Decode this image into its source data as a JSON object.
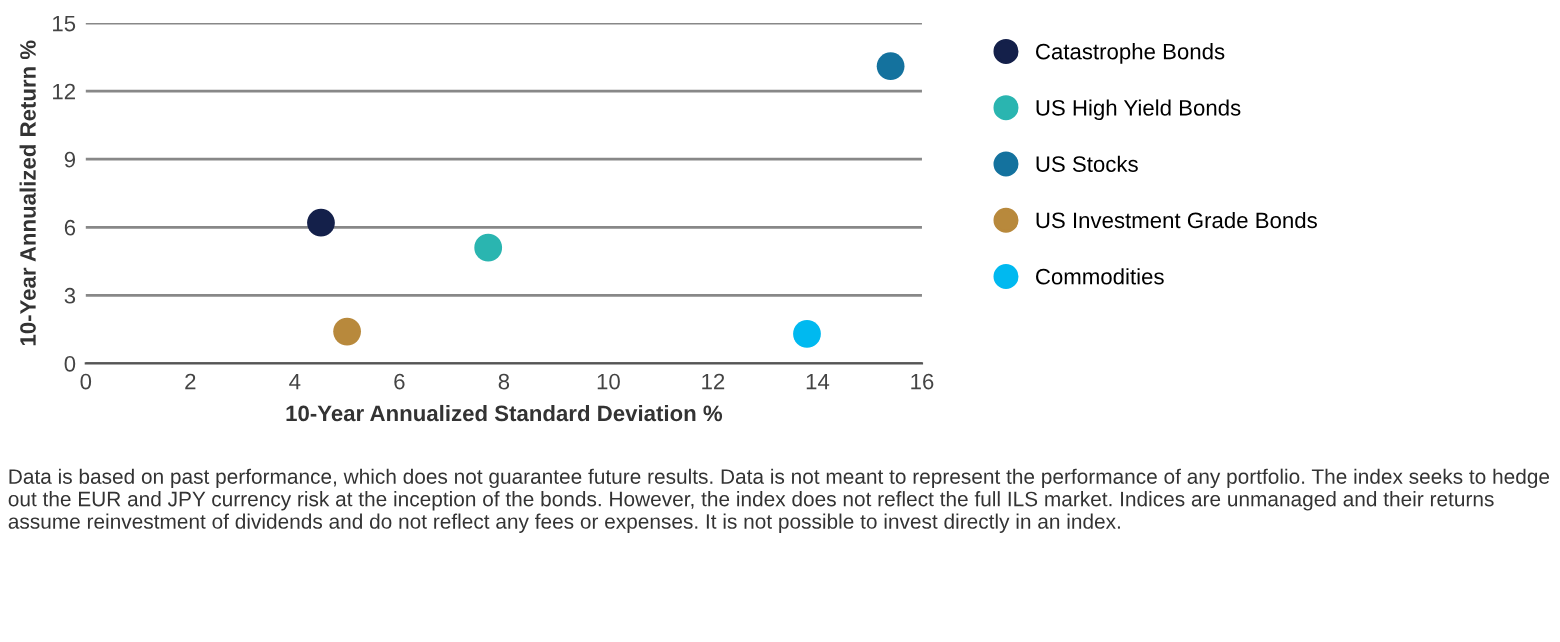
{
  "chart_data": {
    "type": "scatter",
    "xlabel": "10-Year Annualized Standard Deviation %",
    "ylabel": "10-Year Annualized Return %",
    "xlim": [
      0,
      16
    ],
    "xticks": [
      0,
      2,
      4,
      6,
      8,
      10,
      12,
      14,
      16
    ],
    "ylim": [
      0,
      15
    ],
    "yticks": [
      0,
      3,
      6,
      9,
      12,
      15
    ],
    "grid": "y",
    "legend": "right",
    "marker": "circle",
    "series": [
      {
        "name": "Catastrophe Bonds",
        "color": "#14204a",
        "x": [
          4.5
        ],
        "values": [
          6.2
        ]
      },
      {
        "name": "US High Yield Bonds",
        "color": "#2ab5b0",
        "x": [
          7.7
        ],
        "values": [
          5.1
        ]
      },
      {
        "name": "US Stocks",
        "color": "#14729e",
        "x": [
          15.4
        ],
        "values": [
          13.1
        ]
      },
      {
        "name": "US Investment Grade Bonds",
        "color": "#b8893c",
        "x": [
          5.0
        ],
        "values": [
          1.4
        ]
      },
      {
        "name": "Commodities",
        "color": "#00b9f0",
        "x": [
          13.8
        ],
        "values": [
          1.3
        ]
      }
    ],
    "annotations": [
      "Data is based on past performance, which does not guarantee future results. Data is not meant to represent the performance of any portfolio. The index seeks to hedge out the EUR and JPY currency risk at the inception of the bonds. However, the index does not reflect the full ILS market. Indices are unmanaged and their returns assume reinvestment of dividends and do not reflect any fees or expenses. It is not possible to invest directly in an index."
    ]
  }
}
